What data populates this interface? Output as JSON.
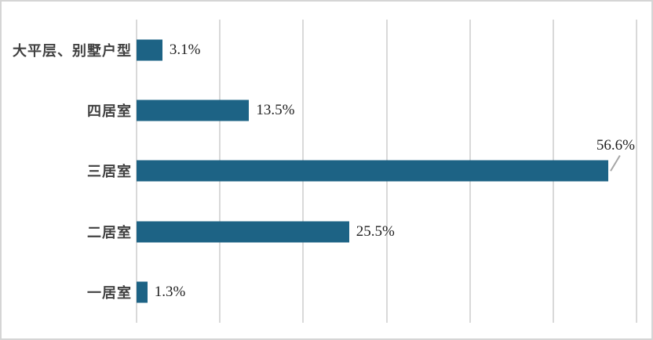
{
  "chart_data": {
    "type": "bar",
    "orientation": "horizontal",
    "title": "",
    "xlabel": "",
    "ylabel": "",
    "categories": [
      "大平层、别墅户型",
      "四居室",
      "三居室",
      "二居室",
      "一居室"
    ],
    "values": [
      3.1,
      13.5,
      56.6,
      25.5,
      1.3
    ],
    "value_labels": [
      "3.1%",
      "13.5%",
      "56.6%",
      "25.5%",
      "1.3%"
    ],
    "callout": [
      false,
      false,
      true,
      false,
      false
    ],
    "xlim": [
      0,
      60
    ],
    "grid_step": 10,
    "grid": true,
    "legend": false,
    "bar_color": "#1d6385",
    "gridline_color": "#d9d9d9",
    "leader_line_color": "#a6a6a6",
    "category_text_color": "#414141",
    "value_text_color": "#1f1f1f"
  }
}
